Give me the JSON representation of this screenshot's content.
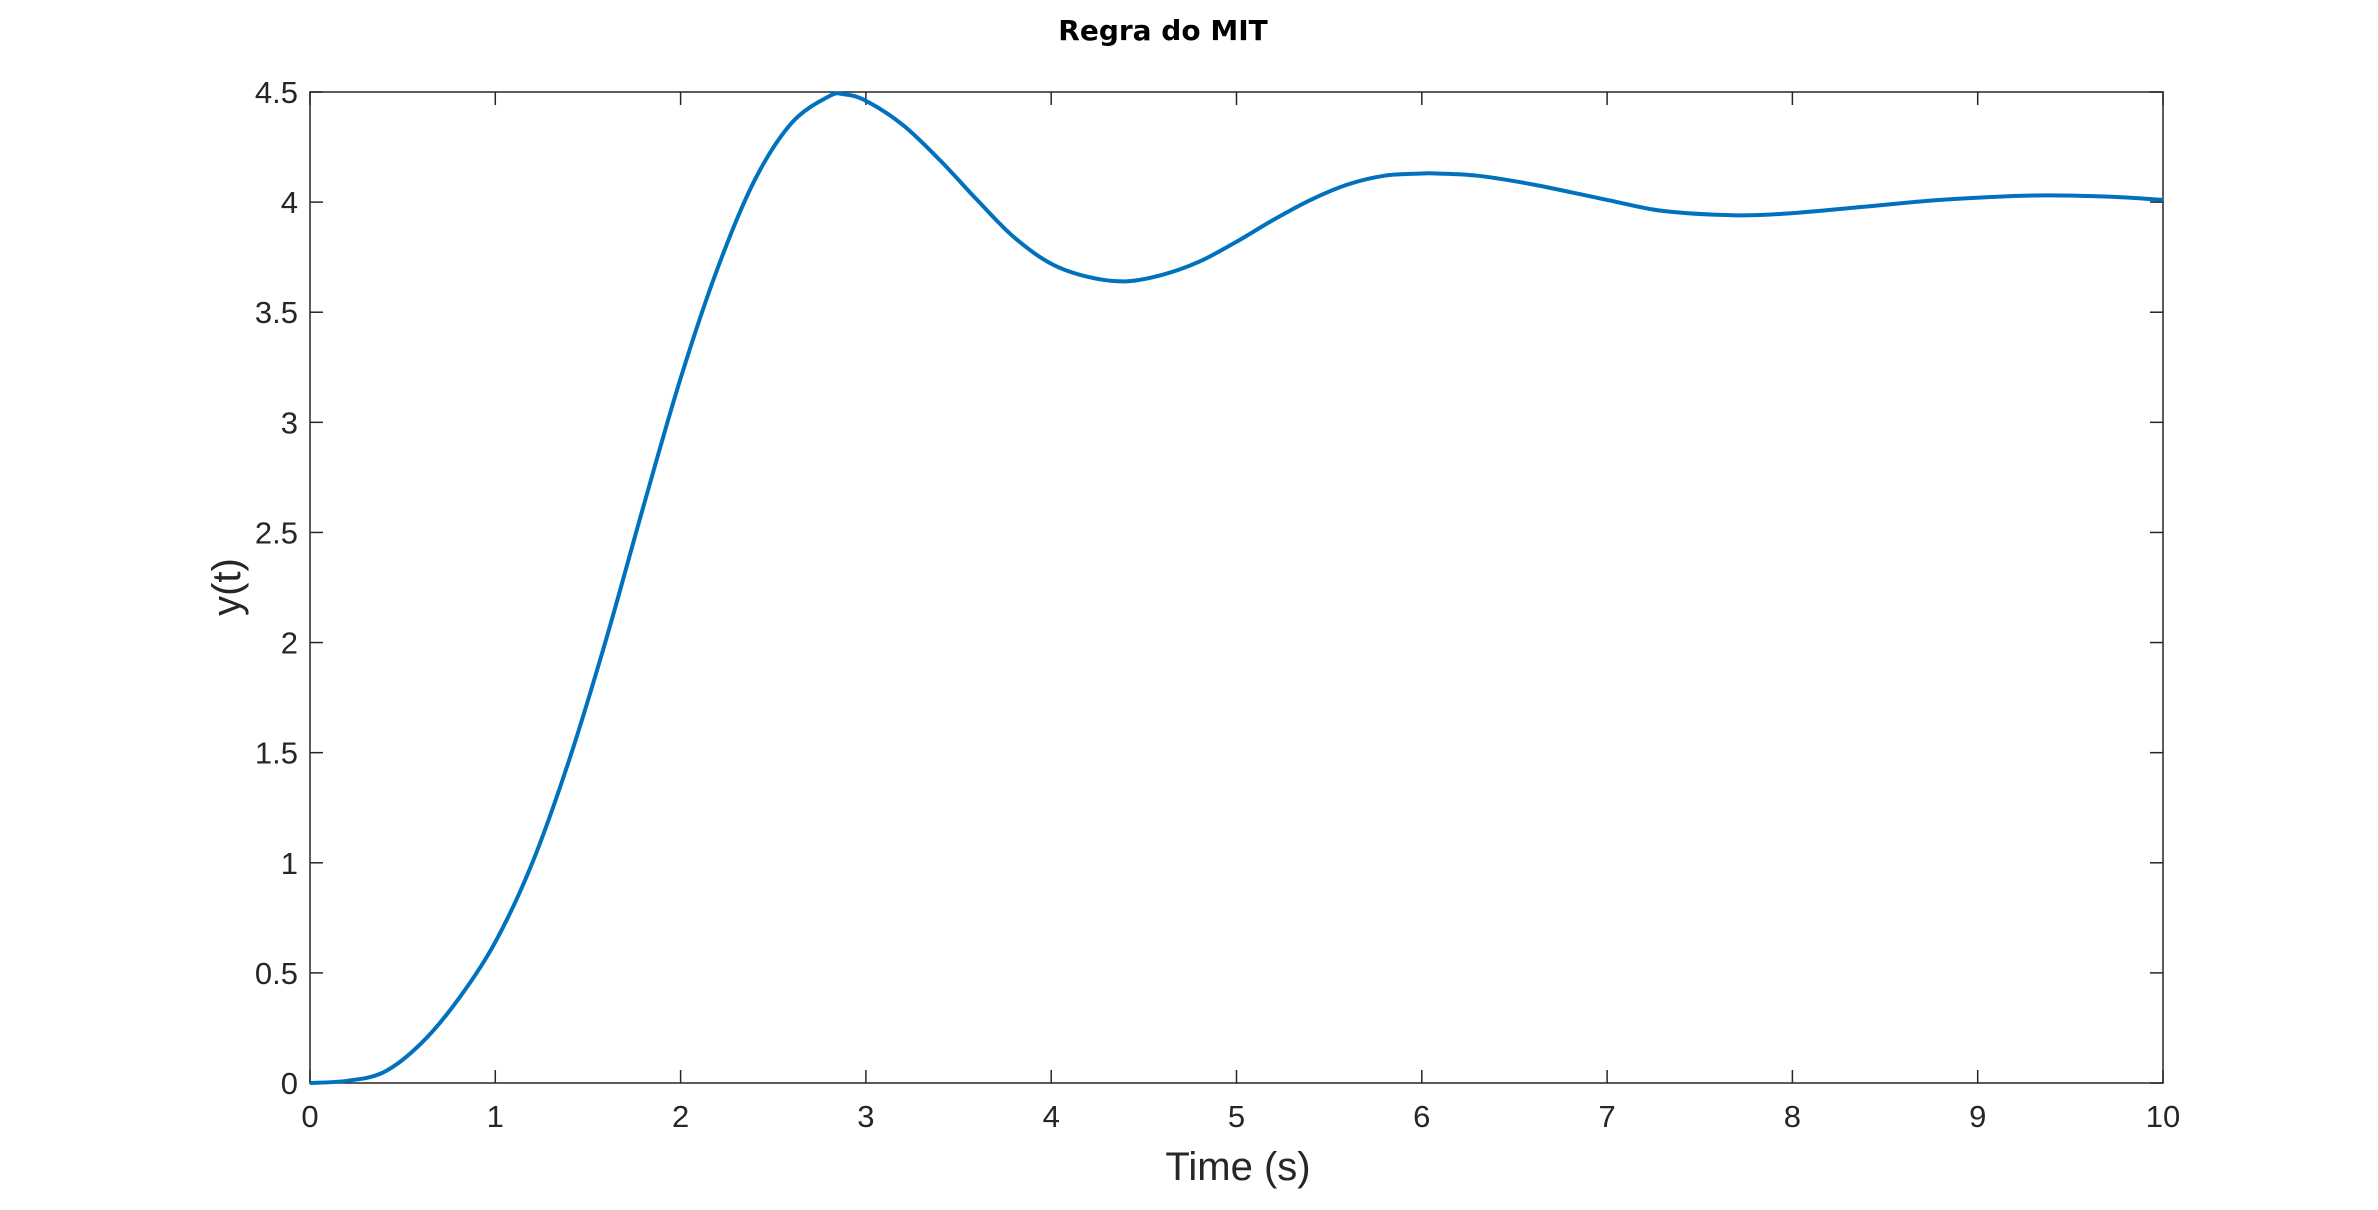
{
  "chart_data": {
    "type": "line",
    "title": "Regra do MIT",
    "xlabel": "Time (s)",
    "ylabel": "y(t)",
    "xlim": [
      0,
      10
    ],
    "ylim": [
      0,
      4.5
    ],
    "xticks": [
      0,
      1,
      2,
      3,
      4,
      5,
      6,
      7,
      8,
      9,
      10
    ],
    "yticks": [
      0,
      0.5,
      1,
      1.5,
      2,
      2.5,
      3,
      3.5,
      4,
      4.5
    ],
    "grid": false,
    "legend": "none",
    "colors": {
      "line": "#0072BD",
      "axes": "#262626",
      "background": "#ffffff"
    },
    "series": [
      {
        "x": [
          0,
          0.2,
          0.4,
          0.6,
          0.8,
          1.0,
          1.2,
          1.4,
          1.6,
          1.8,
          2.0,
          2.2,
          2.4,
          2.6,
          2.8,
          2.88,
          3.0,
          3.2,
          3.4,
          3.6,
          3.8,
          4.0,
          4.2,
          4.4,
          4.6,
          4.8,
          5.0,
          5.2,
          5.4,
          5.6,
          5.8,
          6.0,
          6.08,
          6.3,
          6.6,
          7.0,
          7.3,
          7.7,
          8.0,
          8.4,
          8.8,
          9.3,
          9.7,
          10.0
        ],
        "values": [
          0,
          0.01,
          0.05,
          0.18,
          0.38,
          0.64,
          1.0,
          1.47,
          2.02,
          2.62,
          3.2,
          3.7,
          4.1,
          4.36,
          4.48,
          4.49,
          4.46,
          4.35,
          4.19,
          4.01,
          3.84,
          3.72,
          3.66,
          3.64,
          3.67,
          3.73,
          3.82,
          3.92,
          4.01,
          4.08,
          4.12,
          4.13,
          4.13,
          4.12,
          4.08,
          4.01,
          3.96,
          3.94,
          3.95,
          3.98,
          4.01,
          4.03,
          4.025,
          4.01
        ]
      }
    ]
  }
}
